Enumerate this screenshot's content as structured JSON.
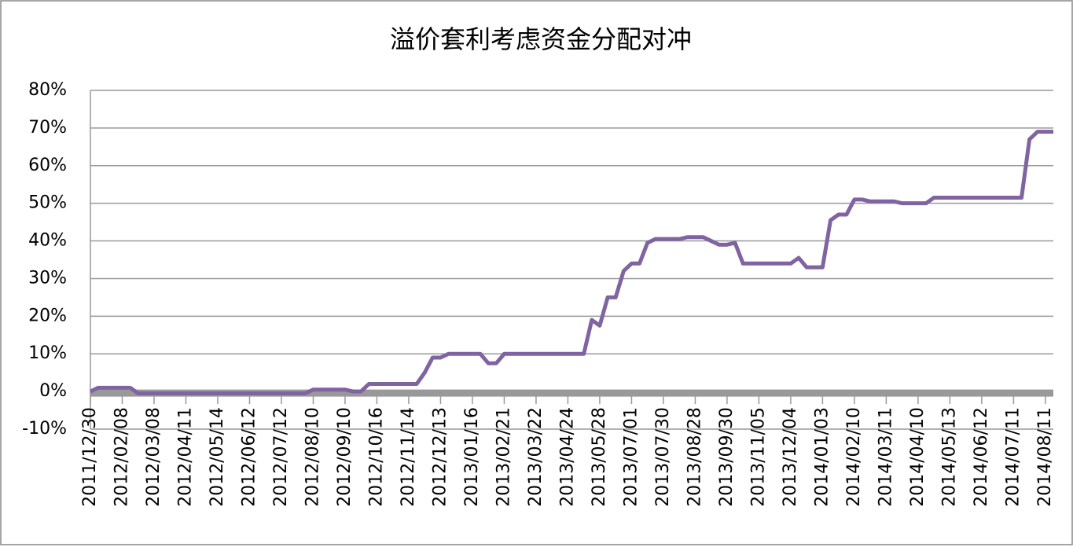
{
  "chart_data": {
    "type": "line",
    "title": "溢价套利考虑资金分配对冲",
    "categories": [
      "2011/12/30",
      null,
      null,
      null,
      "2012/02/08",
      null,
      null,
      null,
      "2012/03/08",
      null,
      null,
      null,
      "2012/04/11",
      null,
      null,
      null,
      "2012/05/14",
      null,
      null,
      null,
      "2012/06/12",
      null,
      null,
      null,
      "2012/07/12",
      null,
      null,
      null,
      "2012/08/10",
      null,
      null,
      null,
      "2012/09/10",
      null,
      null,
      null,
      "2012/10/16",
      null,
      null,
      null,
      "2012/11/14",
      null,
      null,
      null,
      "2012/12/13",
      null,
      null,
      null,
      "2013/01/16",
      null,
      null,
      null,
      "2013/02/21",
      null,
      null,
      null,
      "2013/03/22",
      null,
      null,
      null,
      "2013/04/24",
      null,
      null,
      null,
      "2013/05/28",
      null,
      null,
      null,
      "2013/07/01",
      null,
      null,
      null,
      "2013/07/30",
      null,
      null,
      null,
      "2013/08/28",
      null,
      null,
      null,
      "2013/09/30",
      null,
      null,
      null,
      "2013/11/05",
      null,
      null,
      null,
      "2013/12/04",
      null,
      null,
      null,
      "2014/01/03",
      null,
      null,
      null,
      "2014/02/10",
      null,
      null,
      null,
      "2014/03/11",
      null,
      null,
      null,
      "2014/04/10",
      null,
      null,
      null,
      "2014/05/13",
      null,
      null,
      null,
      "2014/06/12",
      null,
      null,
      null,
      "2014/07/11",
      null,
      null,
      null,
      "2014/08/11",
      null
    ],
    "values": [
      0,
      1,
      1,
      1,
      1,
      1,
      -0.5,
      -0.5,
      -0.5,
      -0.5,
      -0.5,
      -0.5,
      -0.5,
      -0.5,
      -0.5,
      -0.5,
      -0.5,
      -0.5,
      -0.5,
      -0.5,
      -0.5,
      -0.5,
      -0.5,
      -0.5,
      -0.5,
      -0.5,
      -0.5,
      -0.5,
      0.5,
      0.5,
      0.5,
      0.5,
      0.5,
      0,
      0,
      2,
      2,
      2,
      2,
      2,
      2,
      2,
      5,
      9,
      9,
      10,
      10,
      10,
      10,
      10,
      7.5,
      7.5,
      10,
      10,
      10,
      10,
      10,
      10,
      10,
      10,
      10,
      10,
      10,
      19,
      17.5,
      25,
      25,
      32,
      34,
      34,
      39.5,
      40.5,
      40.5,
      40.5,
      40.5,
      41,
      41,
      41,
      40,
      39,
      39,
      39.5,
      34,
      34,
      34,
      34,
      34,
      34,
      34,
      35.5,
      33,
      33,
      33,
      45.5,
      47,
      47,
      51,
      51,
      50.5,
      50.5,
      50.5,
      50.5,
      50,
      50,
      50,
      50,
      51.5,
      51.5,
      51.5,
      51.5,
      51.5,
      51.5,
      51.5,
      51.5,
      51.5,
      51.5,
      51.5,
      51.5,
      67,
      69,
      69,
      69
    ],
    "color": "#8064a2",
    "ylim": [
      -10,
      80
    ],
    "yticks": [
      {
        "value": -10,
        "label": "-10%"
      },
      {
        "value": 0,
        "label": "0%"
      },
      {
        "value": 10,
        "label": "10%"
      },
      {
        "value": 20,
        "label": "20%"
      },
      {
        "value": 30,
        "label": "30%"
      },
      {
        "value": 40,
        "label": "40%"
      },
      {
        "value": 50,
        "label": "50%"
      },
      {
        "value": 60,
        "label": "60%"
      },
      {
        "value": 70,
        "label": "70%"
      },
      {
        "value": 80,
        "label": "80%"
      }
    ],
    "grid": true
  }
}
